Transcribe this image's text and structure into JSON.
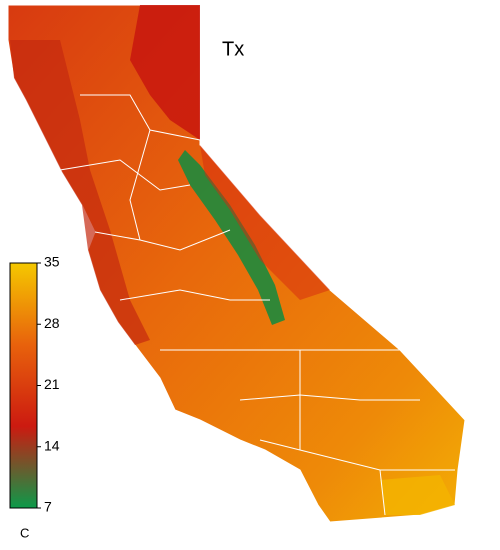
{
  "title": "Tx",
  "colorbar": {
    "lim": [
      7,
      35
    ],
    "ticks": [
      35,
      28,
      21,
      14,
      7
    ],
    "colors": [
      "#0c9a4a",
      "#cc1a10",
      "#e8620c",
      "#f5c800"
    ],
    "label": "C"
  }
}
